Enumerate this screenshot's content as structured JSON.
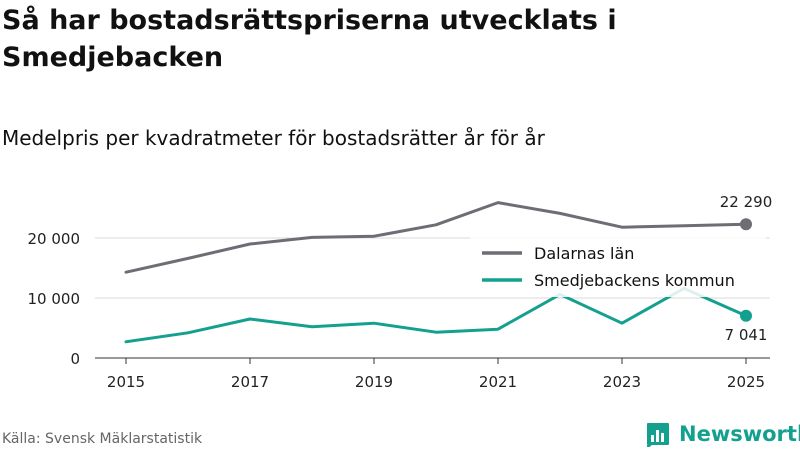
{
  "header": {
    "title": "Så har bostadsrättspriserna utvecklats i Smedjebacken",
    "subtitle": "Medelpris per kvadratmeter för bostadsrätter år för år"
  },
  "footer": {
    "source": "Källa: Svensk Mäklarstatistik",
    "brand": "Newsworthy"
  },
  "colors": {
    "dalarna": "#6e6d74",
    "smedjebacken": "#14a08f",
    "grid": "#d9d9d9",
    "axis": "#333333"
  },
  "chart_data": {
    "type": "line",
    "title": "Så har bostadsrättspriserna utvecklats i Smedjebacken",
    "subtitle": "Medelpris per kvadratmeter för bostadsrätter år för år",
    "x": [
      2015,
      2016,
      2017,
      2018,
      2019,
      2020,
      2021,
      2022,
      2023,
      2024,
      2025
    ],
    "xticks": [
      "2015",
      "2017",
      "2019",
      "2021",
      "2023",
      "2025"
    ],
    "yticks": [
      "0",
      "10 000",
      "20 000"
    ],
    "ylim": [
      0,
      30000
    ],
    "grid": true,
    "legend_position": "middle-right",
    "series": [
      {
        "name": "Dalarnas län",
        "color": "#6e6d74",
        "values": [
          14300,
          16600,
          19000,
          20100,
          20300,
          22200,
          25900,
          24100,
          21800,
          22050,
          22290
        ],
        "end_label": "22 290"
      },
      {
        "name": "Smedjebackens kommun",
        "color": "#14a08f",
        "values": [
          2700,
          4200,
          6500,
          5200,
          5800,
          4300,
          4800,
          10600,
          5800,
          11600,
          7041
        ],
        "end_label": "7 041"
      }
    ]
  }
}
